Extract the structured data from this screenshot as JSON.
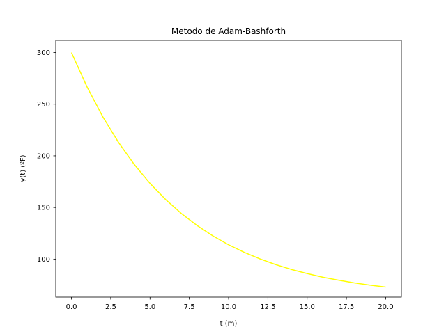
{
  "chart_data": {
    "type": "line",
    "title": "Metodo de Adam-Bashforth",
    "xlabel": "t (m)",
    "ylabel": "y(t) (ºF)",
    "xlim": [
      -1.0,
      21.0
    ],
    "ylim": [
      63.2,
      311.8
    ],
    "xticks": [
      0.0,
      2.5,
      5.0,
      7.5,
      10.0,
      12.5,
      15.0,
      17.5,
      20.0
    ],
    "xtick_labels": [
      "0.0",
      "2.5",
      "5.0",
      "7.5",
      "10.0",
      "12.5",
      "15.0",
      "17.5",
      "20.0"
    ],
    "yticks": [
      100,
      150,
      200,
      250,
      300
    ],
    "ytick_labels": [
      "100",
      "150",
      "200",
      "250",
      "300"
    ],
    "grid": false,
    "series": [
      {
        "color": "#ffff00",
        "x": [
          0,
          1,
          2,
          3,
          4,
          5,
          6,
          7,
          8,
          9,
          10,
          11,
          12,
          13,
          14,
          15,
          16,
          17,
          18,
          19,
          20
        ],
        "y": [
          300.0,
          266.5,
          237.7,
          212.9,
          191.6,
          173.3,
          157.6,
          144.1,
          132.5,
          122.5,
          113.9,
          106.5,
          100.2,
          94.7,
          90.0,
          86.0,
          82.5,
          79.6,
          77.0,
          74.8,
          73.0
        ]
      }
    ]
  }
}
